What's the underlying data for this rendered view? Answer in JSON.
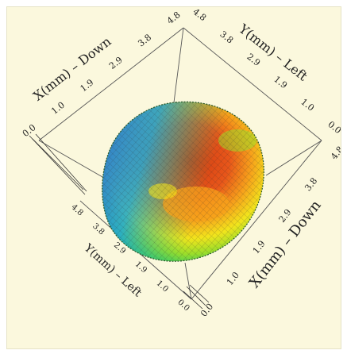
{
  "chart_data": {
    "type": "surface3d",
    "view": "top-down oblique",
    "colormap": [
      "#2f5fd0",
      "#1ea8d8",
      "#29c96b",
      "#9bde2a",
      "#f2e51c",
      "#f7a21b",
      "#e8561a",
      "#cf3a12"
    ],
    "axes": [
      {
        "name": "x_upper_left",
        "label": "X(mm)",
        "direction": "Down",
        "ticks": [
          "0.0",
          "1.0",
          "1.9",
          "2.9",
          "3.8",
          "4.8"
        ]
      },
      {
        "name": "y_upper_right",
        "label": "Y(mm)",
        "direction": "Left",
        "ticks": [
          "4.8",
          "3.8",
          "2.9",
          "1.9",
          "1.0",
          "0.0"
        ]
      },
      {
        "name": "x_lower_right",
        "label": "X(mm)",
        "direction": "Down",
        "ticks": [
          "4.8",
          "3.8",
          "2.9",
          "1.9",
          "1.0",
          "0.0"
        ]
      },
      {
        "name": "y_lower_left",
        "label": "Y(mm)",
        "direction": "Left",
        "ticks": [
          "4.8",
          "3.8",
          "2.9",
          "1.9",
          "1.0",
          "0.0"
        ]
      }
    ],
    "x_range": [
      0.0,
      4.8
    ],
    "y_range": [
      0.0,
      4.8
    ],
    "grid": false
  },
  "axis_titles": {
    "x_upper_left": "X(mm) – Down",
    "y_upper_right": "Y(mm) – Left",
    "x_lower_right": "X(mm) – Down",
    "y_lower_left": "Y(mm) – Left"
  }
}
